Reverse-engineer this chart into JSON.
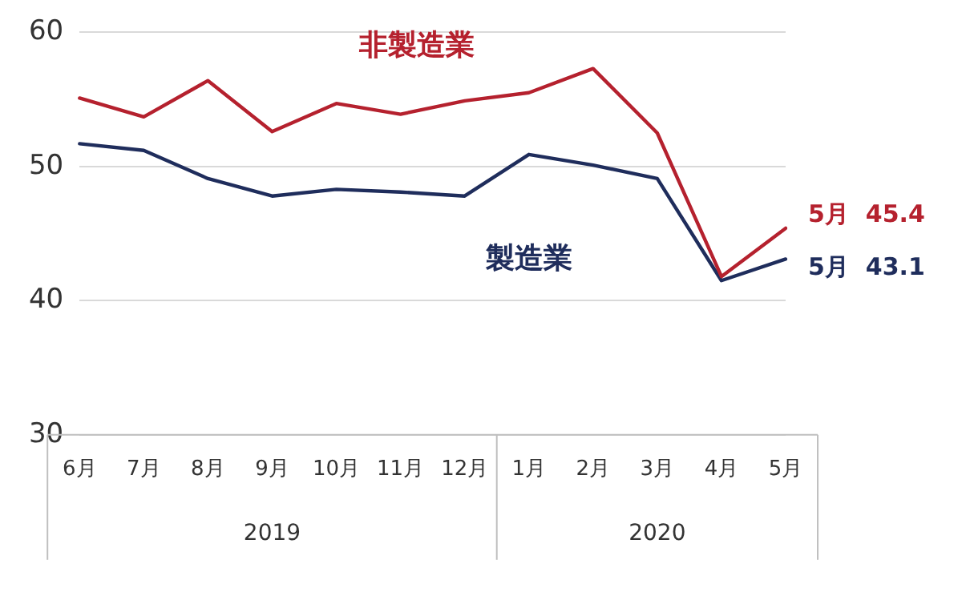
{
  "chart_data": {
    "type": "line",
    "categories": [
      "6月",
      "7月",
      "8月",
      "9月",
      "10月",
      "11月",
      "12月",
      "1月",
      "2月",
      "3月",
      "4月",
      "5月"
    ],
    "series": [
      {
        "name": "非製造業",
        "color": "#b5212e",
        "values": [
          55.1,
          53.7,
          56.4,
          52.6,
          54.7,
          53.9,
          54.9,
          55.5,
          57.3,
          52.5,
          41.8,
          45.4
        ],
        "value_labels": [
          null,
          null,
          null,
          null,
          null,
          null,
          null,
          null,
          null,
          null,
          null,
          "5月  45.4"
        ]
      },
      {
        "name": "製造業",
        "color": "#1f2d5c",
        "values": [
          51.7,
          51.2,
          49.1,
          47.8,
          48.3,
          48.1,
          47.8,
          50.9,
          50.1,
          49.1,
          41.5,
          43.1
        ],
        "value_labels": [
          null,
          null,
          null,
          null,
          null,
          null,
          null,
          null,
          null,
          null,
          null,
          "5月  43.1"
        ]
      }
    ],
    "annotations": [
      "2019",
      "2020"
    ],
    "ylim": [
      30,
      60
    ],
    "yticks": [
      30,
      40,
      50,
      60
    ],
    "grid": "y",
    "legend": false,
    "marker": "none",
    "line_style": "solid"
  }
}
